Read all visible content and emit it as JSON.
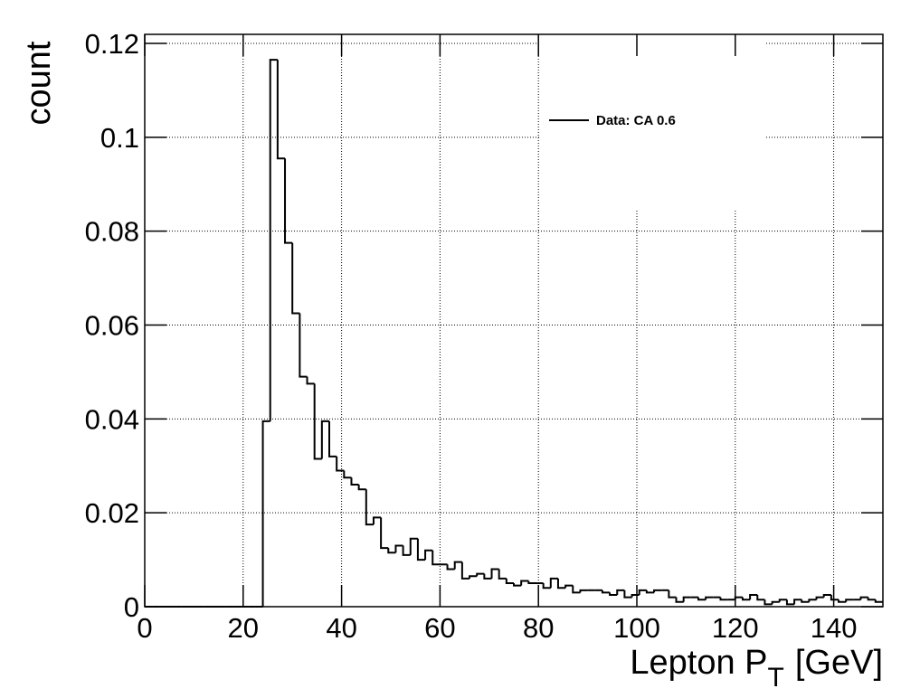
{
  "chart_data": {
    "type": "histogram",
    "xlabel": "Lepton P",
    "xlabel_subscript": "T",
    "xlabel_unit": "[GeV]",
    "ylabel": "count",
    "xlim": [
      0,
      150
    ],
    "xticks": [
      0,
      20,
      40,
      60,
      80,
      100,
      120,
      140
    ],
    "ylim": [
      0,
      0.12
    ],
    "yticks": [
      0,
      0.02,
      0.04,
      0.06,
      0.08,
      0.1,
      0.12
    ],
    "grid": true,
    "legend_loc": "upper right",
    "series": [
      {
        "name": "Data: CA 0.6",
        "color": "#000000",
        "bins": [
          0,
          1.5,
          3,
          4.5,
          6,
          7.5,
          9,
          10.5,
          12,
          13.5,
          15,
          16.5,
          18,
          19.5,
          21,
          22.5,
          24,
          25.5,
          27,
          28.5,
          30,
          31.5,
          33,
          34.5,
          36,
          37.5,
          39,
          40.5,
          42,
          43.5,
          45,
          46.5,
          48,
          49.5,
          51,
          52.5,
          54,
          55.5,
          57,
          58.5,
          60,
          61.5,
          63,
          64.5,
          66,
          67.5,
          69,
          70.5,
          72,
          73.5,
          75,
          76.5,
          78,
          79.5,
          81,
          82.5,
          84,
          85.5,
          87,
          88.5,
          90,
          91.5,
          93,
          94.5,
          96,
          97.5,
          99,
          100.5,
          102,
          103.5,
          105,
          106.5,
          108,
          109.5,
          111,
          112.5,
          114,
          115.5,
          117,
          118.5,
          120,
          121.5,
          123,
          124.5,
          126,
          127.5,
          129,
          130.5,
          132,
          133.5,
          135,
          136.5,
          138,
          139.5,
          141,
          142.5,
          144,
          145.5,
          147,
          148.5,
          150
        ],
        "values": [
          0,
          0,
          0,
          0,
          0,
          0,
          0,
          0,
          0,
          0,
          0,
          0,
          0,
          0,
          0,
          0,
          0.0395,
          0.1165,
          0.0955,
          0.0775,
          0.0625,
          0.049,
          0.0475,
          0.0315,
          0.0395,
          0.032,
          0.029,
          0.0275,
          0.026,
          0.025,
          0.0175,
          0.019,
          0.0125,
          0.0115,
          0.013,
          0.011,
          0.0145,
          0.01,
          0.012,
          0.009,
          0.009,
          0.008,
          0.0095,
          0.006,
          0.0065,
          0.007,
          0.006,
          0.008,
          0.006,
          0.005,
          0.0045,
          0.0055,
          0.005,
          0.005,
          0.004,
          0.006,
          0.004,
          0.0045,
          0.003,
          0.0035,
          0.0035,
          0.0035,
          0.003,
          0.0025,
          0.0035,
          0.002,
          0.0025,
          0.0035,
          0.003,
          0.0035,
          0.0035,
          0.002,
          0.001,
          0.002,
          0.002,
          0.0015,
          0.002,
          0.002,
          0.0015,
          0.0015,
          0.002,
          0.0015,
          0.0025,
          0.0015,
          0.0005,
          0.001,
          0.0015,
          0.0005,
          0.0015,
          0.001,
          0.0015,
          0.002,
          0.0025,
          0.0015,
          0.001,
          0.0015,
          0.0015,
          0.002,
          0.0015,
          0.001
        ]
      }
    ]
  }
}
